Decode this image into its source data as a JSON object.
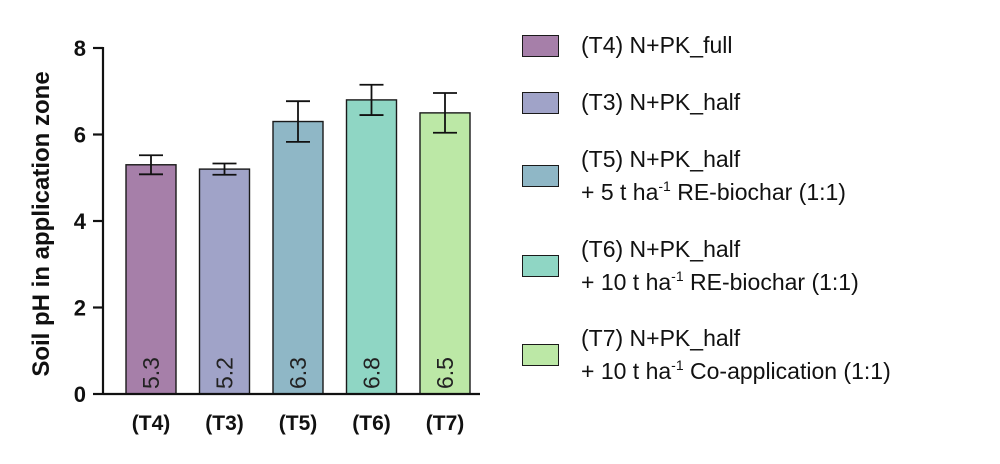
{
  "chart_data": {
    "type": "bar",
    "ylabel": "Soil pH in application zone",
    "xlabel": "",
    "ylim": [
      0,
      8
    ],
    "yticks": [
      0,
      2,
      4,
      6,
      8
    ],
    "categories": [
      "(T4)",
      "(T3)",
      "(T5)",
      "(T6)",
      "(T7)"
    ],
    "values": [
      5.3,
      5.2,
      6.3,
      6.8,
      6.5
    ],
    "error": [
      0.22,
      0.13,
      0.47,
      0.35,
      0.46
    ],
    "data_labels": [
      "5.3",
      "5.2",
      "6.3",
      "6.8",
      "6.5"
    ],
    "colors": [
      "#a67fa9",
      "#a0a3c8",
      "#8fb7c6",
      "#8fd6c4",
      "#bce8a6"
    ],
    "grid": false,
    "legend_position": "right",
    "legend": [
      {
        "line1": "(T4) N+PK_full",
        "line2": null
      },
      {
        "line1": "(T3) N+PK_half",
        "line2": null
      },
      {
        "line1": "(T5) N+PK_half",
        "line2": {
          "pre": "+ 5 t ha",
          "sup": "-1",
          "post": " RE-biochar (1:1)"
        }
      },
      {
        "line1": "(T6) N+PK_half",
        "line2": {
          "pre": "+ 10 t ha",
          "sup": "-1",
          "post": " RE-biochar (1:1)"
        }
      },
      {
        "line1": "(T7) N+PK_half",
        "line2": {
          "pre": "+ 10 t ha",
          "sup": "-1",
          "post": " Co-application (1:1)"
        }
      }
    ]
  }
}
